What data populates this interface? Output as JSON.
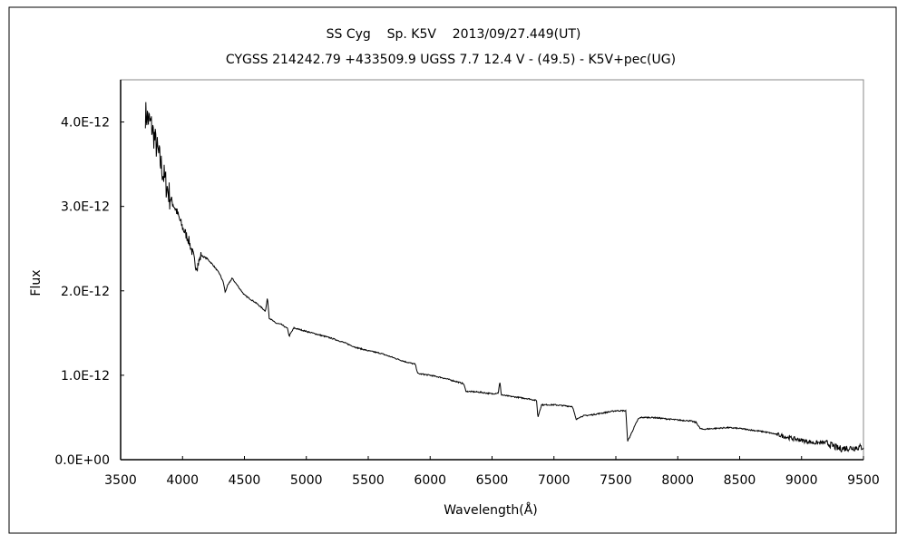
{
  "chart_data": {
    "type": "line",
    "title": "SS Cyg    Sp. K5V    2013/09/27.449(UT)",
    "subtitle": "CYGSS 214242.79 +433509.9 UGSS 7.7 12.4 V - (49.5) - K5V+pec(UG)",
    "xlabel": "Wavelength(Å)",
    "ylabel": "Flux",
    "xlim": [
      3500,
      9500
    ],
    "ylim": [
      0,
      4.5e-12
    ],
    "xticks": [
      3500,
      4000,
      4500,
      5000,
      5500,
      6000,
      6500,
      7000,
      7500,
      8000,
      8500,
      9000,
      9500
    ],
    "xtick_labels": [
      "3500",
      "4000",
      "4500",
      "5000",
      "5500",
      "6000",
      "6500",
      "7000",
      "7500",
      "8000",
      "8500",
      "9000",
      "9500"
    ],
    "yticks": [
      0,
      1e-12,
      2e-12,
      3e-12,
      4e-12
    ],
    "ytick_labels": [
      "0.0E+00",
      "1.0E-12",
      "2.0E-12",
      "3.0E-12",
      "4.0E-12"
    ],
    "grid": false,
    "legend": "none",
    "flux_unit_scale": 1e-12,
    "series": [
      {
        "name": "SS Cyg spectrum",
        "color": "#000000",
        "x": [
          3700,
          3750,
          3800,
          3850,
          3900,
          3950,
          4000,
          4050,
          4090,
          4100,
          4120,
          4150,
          4200,
          4250,
          4300,
          4330,
          4345,
          4360,
          4400,
          4450,
          4500,
          4600,
          4670,
          4686,
          4700,
          4750,
          4800,
          4850,
          4861,
          4875,
          4900,
          5000,
          5100,
          5200,
          5300,
          5400,
          5500,
          5600,
          5700,
          5800,
          5880,
          5900,
          6000,
          6100,
          6200,
          6270,
          6290,
          6400,
          6500,
          6550,
          6563,
          6575,
          6600,
          6800,
          6860,
          6870,
          6885,
          6900,
          7000,
          7150,
          7180,
          7200,
          7240,
          7300,
          7500,
          7580,
          7595,
          7610,
          7640,
          7680,
          7700,
          7800,
          8000,
          8100,
          8150,
          8180,
          8200,
          8300,
          8400,
          8500,
          8600,
          8700,
          8800,
          8900,
          9000,
          9100,
          9200,
          9300,
          9400,
          9500
        ],
        "y": [
          4.1,
          3.95,
          3.65,
          3.35,
          3.1,
          2.95,
          2.75,
          2.6,
          2.4,
          2.3,
          2.3,
          2.42,
          2.38,
          2.3,
          2.2,
          2.1,
          1.98,
          2.05,
          2.15,
          2.05,
          1.95,
          1.85,
          1.76,
          1.92,
          1.68,
          1.62,
          1.6,
          1.55,
          1.46,
          1.5,
          1.56,
          1.52,
          1.48,
          1.44,
          1.39,
          1.33,
          1.29,
          1.26,
          1.21,
          1.16,
          1.13,
          1.02,
          1.0,
          0.97,
          0.93,
          0.9,
          0.81,
          0.8,
          0.78,
          0.79,
          0.92,
          0.77,
          0.76,
          0.72,
          0.7,
          0.5,
          0.58,
          0.65,
          0.65,
          0.63,
          0.47,
          0.5,
          0.52,
          0.53,
          0.58,
          0.58,
          0.22,
          0.26,
          0.36,
          0.48,
          0.5,
          0.5,
          0.47,
          0.46,
          0.44,
          0.37,
          0.36,
          0.37,
          0.38,
          0.37,
          0.35,
          0.33,
          0.3,
          0.26,
          0.23,
          0.2,
          0.2,
          0.13,
          0.14,
          0.15
        ]
      }
    ]
  }
}
